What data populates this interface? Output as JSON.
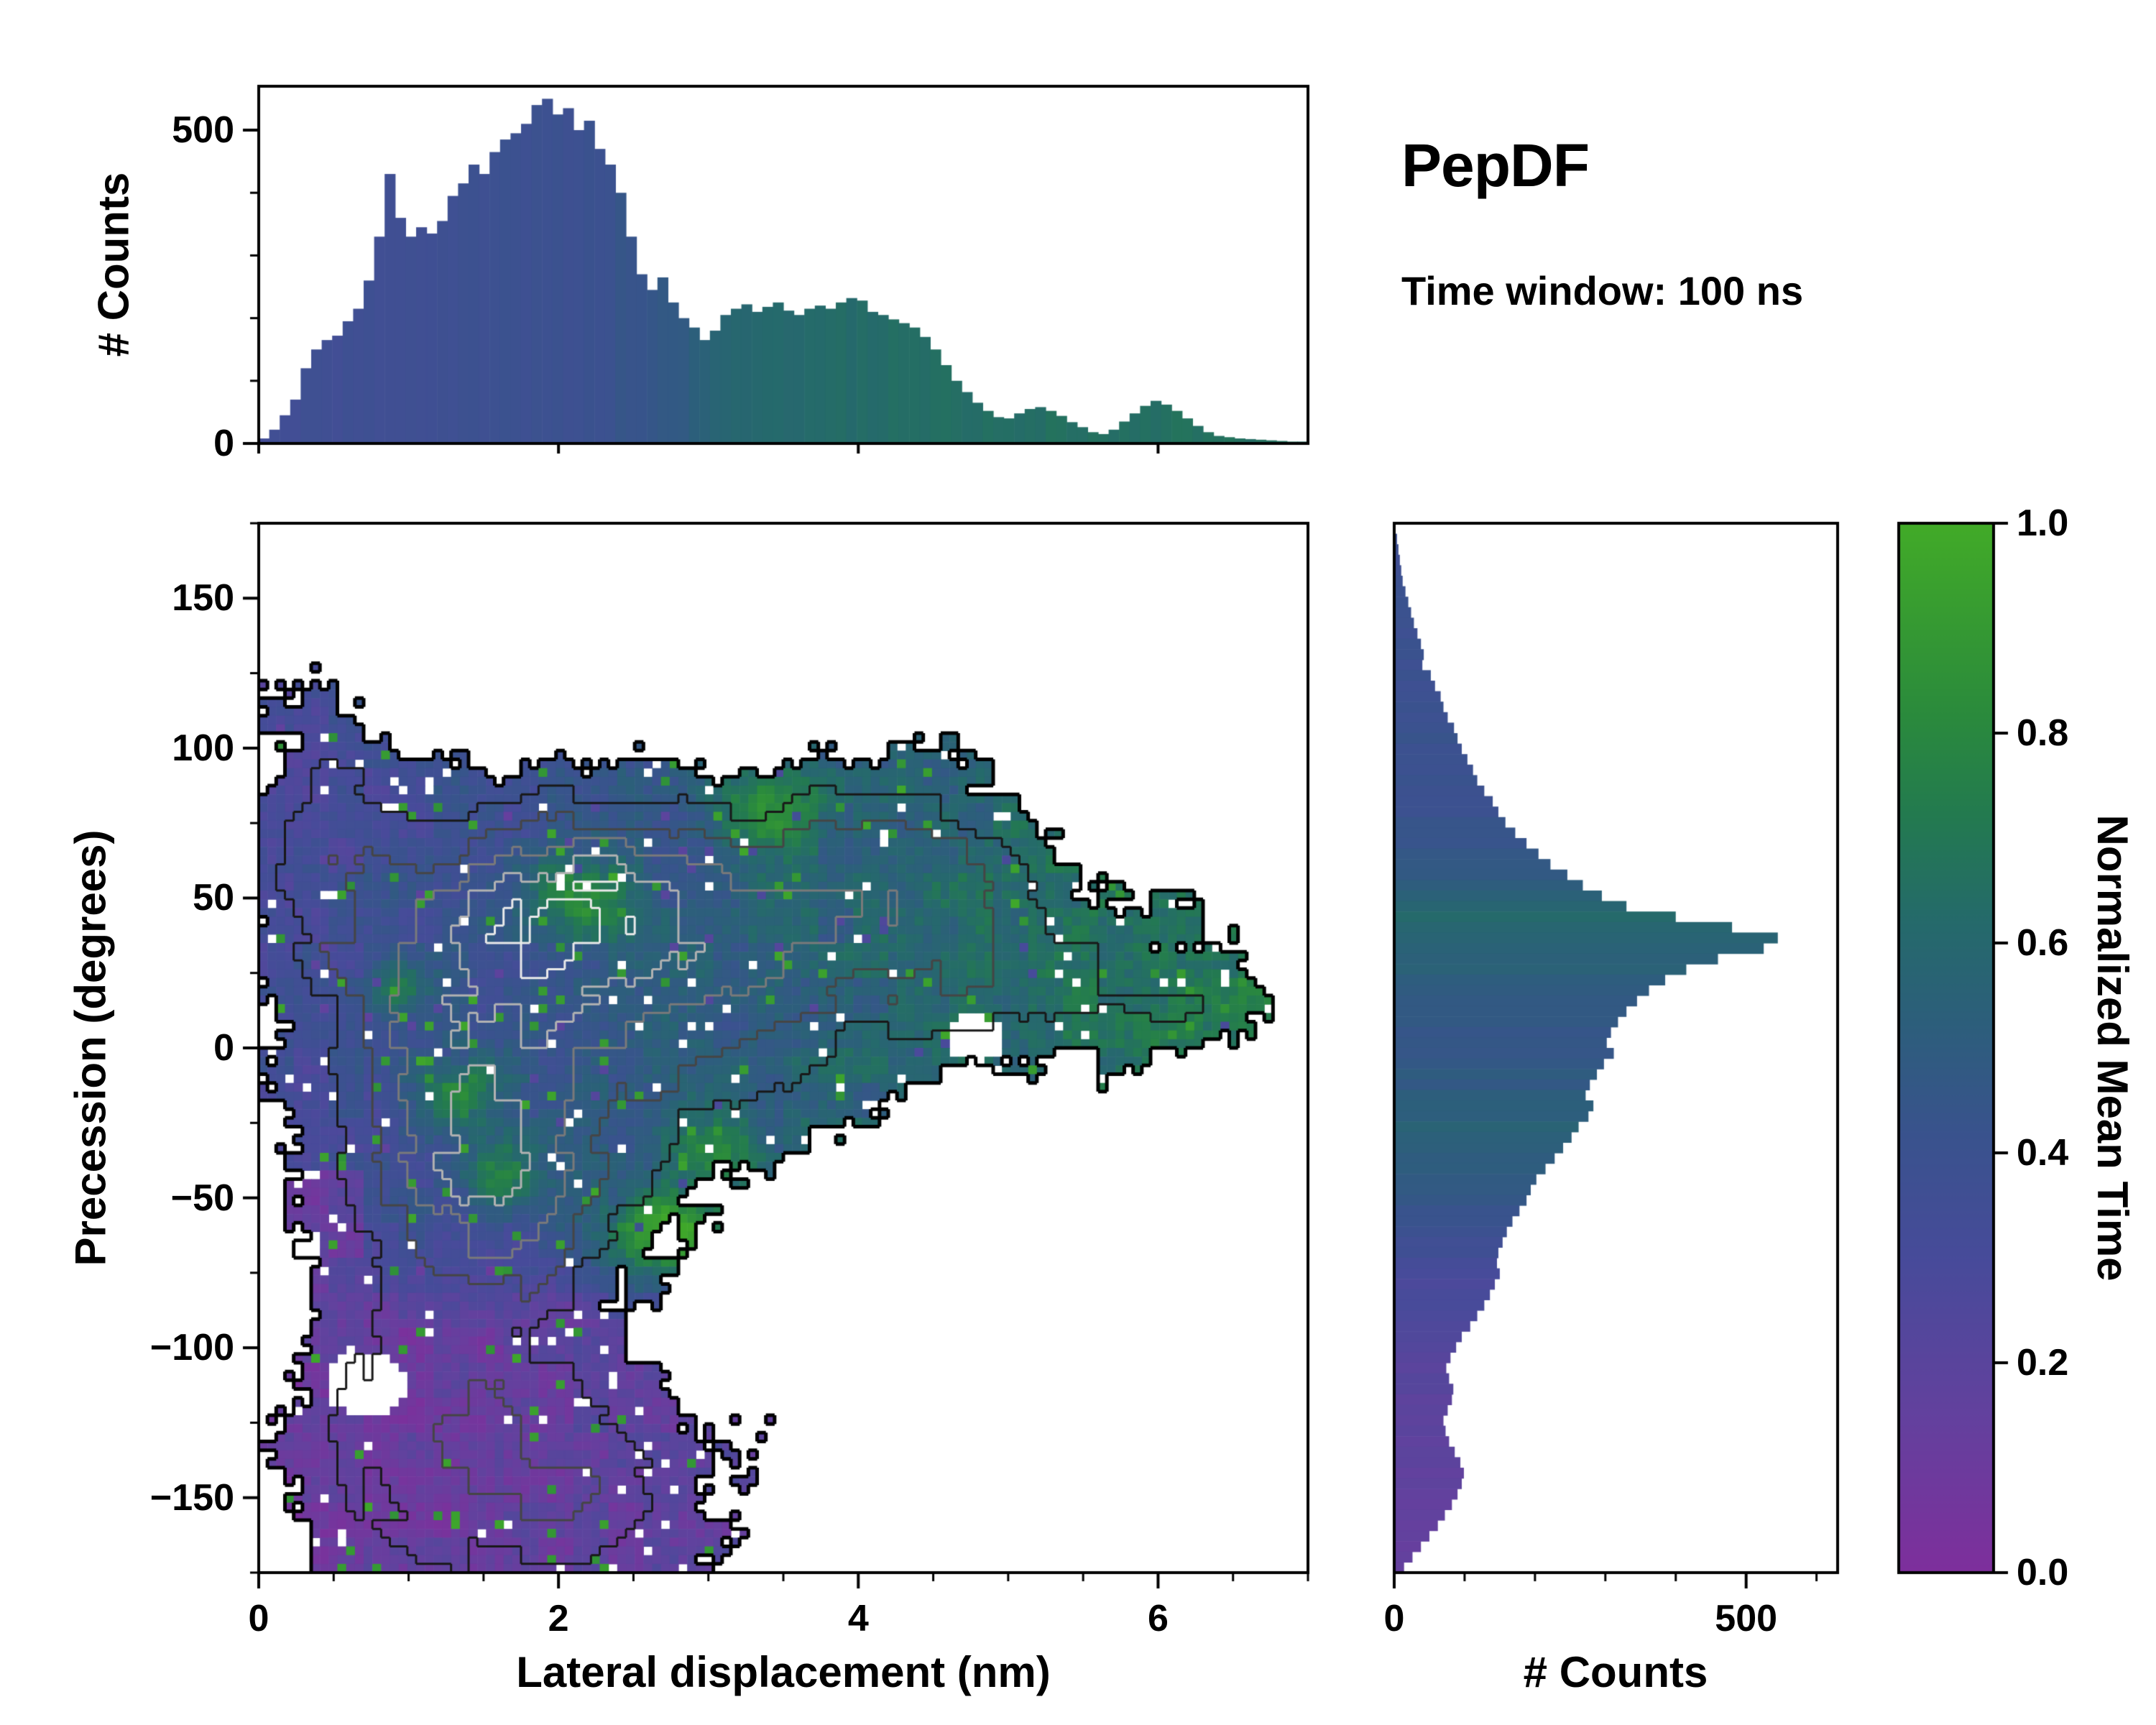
{
  "title": {
    "main": "PepDF",
    "subtitle": "Time window: 100 ns"
  },
  "colors": {
    "background": "#ffffff",
    "axis": "#000000",
    "colormap": [
      [
        0.0,
        "#7e2f9c"
      ],
      [
        0.15,
        "#63419e"
      ],
      [
        0.3,
        "#474b9a"
      ],
      [
        0.42,
        "#39538d"
      ],
      [
        0.52,
        "#2d5e7c"
      ],
      [
        0.62,
        "#256a6b"
      ],
      [
        0.72,
        "#237a50"
      ],
      [
        0.82,
        "#2b8b3c"
      ],
      [
        1.0,
        "#42ab28"
      ]
    ]
  },
  "chart_data": [
    {
      "type": "bar",
      "name": "top-marginal-histogram",
      "xlabel": "Lateral displacement (nm)",
      "ylabel": "# Counts",
      "x_range": [
        0,
        7
      ],
      "y_max": 570,
      "y_ticks": [
        0,
        500
      ],
      "y_minor_step": 100,
      "values": [
        8,
        22,
        45,
        70,
        120,
        150,
        165,
        172,
        195,
        215,
        260,
        330,
        430,
        360,
        330,
        345,
        335,
        355,
        395,
        415,
        445,
        430,
        465,
        485,
        495,
        510,
        540,
        550,
        525,
        535,
        500,
        515,
        470,
        445,
        400,
        330,
        270,
        245,
        265,
        225,
        200,
        185,
        165,
        180,
        205,
        215,
        222,
        210,
        218,
        225,
        212,
        205,
        215,
        220,
        215,
        225,
        232,
        228,
        210,
        205,
        198,
        192,
        185,
        170,
        150,
        125,
        100,
        82,
        65,
        52,
        42,
        40,
        48,
        55,
        58,
        52,
        44,
        34,
        26,
        18,
        15,
        22,
        35,
        48,
        60,
        68,
        62,
        52,
        40,
        28,
        18,
        12,
        10,
        8,
        7,
        6,
        5,
        4,
        3,
        3
      ],
      "color_profile": [
        [
          0,
          0.34
        ],
        [
          1.0,
          0.37
        ],
        [
          2.2,
          0.4
        ],
        [
          2.8,
          0.48
        ],
        [
          3.2,
          0.6
        ],
        [
          4.0,
          0.63
        ],
        [
          5.0,
          0.65
        ],
        [
          7,
          0.66
        ]
      ]
    },
    {
      "type": "heatmap",
      "name": "precession-vs-displacement-2d-histogram",
      "xlabel": "Lateral displacement (nm)",
      "ylabel": "Precession (degrees)",
      "x_range": [
        0,
        7
      ],
      "y_range": [
        -175,
        175
      ],
      "x_ticks": [
        0,
        2,
        4,
        6
      ],
      "x_minor_step": 0.5,
      "y_ticks": [
        -150,
        -100,
        -50,
        0,
        50,
        100,
        150
      ],
      "y_minor_step": 25,
      "color_label": "Normalized Mean Time",
      "color_range": [
        0,
        1
      ],
      "grid": [
        120,
        120
      ],
      "mask_threshold": 0.22,
      "density_blobs": [
        [
          1.35,
          25,
          1.0,
          45,
          1.05
        ],
        [
          2.2,
          50,
          0.9,
          33,
          1.0
        ],
        [
          3.6,
          45,
          1.3,
          38,
          0.8
        ],
        [
          5.0,
          28,
          1.0,
          30,
          0.55
        ],
        [
          6.2,
          15,
          0.65,
          18,
          0.42
        ],
        [
          1.45,
          -25,
          0.85,
          32,
          1.0
        ],
        [
          1.6,
          -60,
          0.9,
          28,
          0.75
        ],
        [
          1.2,
          -125,
          0.95,
          52,
          0.75
        ],
        [
          2.2,
          -150,
          0.9,
          34,
          0.55
        ],
        [
          0.45,
          70,
          0.55,
          40,
          0.55
        ],
        [
          2.9,
          0,
          1.0,
          40,
          0.6
        ],
        [
          4.3,
          70,
          0.8,
          24,
          0.45
        ]
      ],
      "value_base": {
        "intercept": 0.32,
        "slope": 0.06,
        "upper_y": 60,
        "upper_drop": 0.03,
        "deep_value": 0.1,
        "deep_slope": 0.025,
        "deep_y": -95,
        "blend_y": -55
      },
      "value_hotspots": [
        [
          1.35,
          -15,
          0.3,
          12,
          0.4
        ],
        [
          1.6,
          -42,
          0.25,
          10,
          0.38
        ],
        [
          2.15,
          50,
          0.35,
          14,
          0.4
        ],
        [
          3.4,
          78,
          0.35,
          14,
          0.35
        ],
        [
          0.95,
          20,
          0.2,
          9,
          0.3
        ],
        [
          2.7,
          -60,
          0.3,
          12,
          0.42
        ],
        [
          2.8,
          -70,
          0.5,
          18,
          0.25
        ],
        [
          3.0,
          -35,
          0.3,
          12,
          0.3
        ]
      ],
      "holes": [
        [
          0.72,
          -112,
          0.28,
          11
        ],
        [
          0.25,
          -68,
          0.18,
          8
        ],
        [
          4.78,
          3,
          0.2,
          8
        ]
      ],
      "contour_colors": [
        "#000000",
        "#181818",
        "#454545",
        "#7a7a7a",
        "#b2b2b2",
        "#eaeaea"
      ]
    },
    {
      "type": "bar",
      "name": "right-marginal-histogram",
      "orientation": "horizontal",
      "xlabel": "# Counts",
      "x_max": 630,
      "x_ticks": [
        0,
        500
      ],
      "x_minor_step": 100,
      "y_range": [
        -175,
        175
      ],
      "y_order": "descending",
      "values": [
        2,
        4,
        6,
        8,
        10,
        12,
        16,
        20,
        24,
        28,
        33,
        38,
        42,
        40,
        52,
        58,
        66,
        70,
        76,
        85,
        90,
        96,
        104,
        112,
        118,
        128,
        140,
        148,
        158,
        172,
        188,
        205,
        222,
        246,
        268,
        295,
        330,
        400,
        480,
        545,
        525,
        460,
        415,
        385,
        362,
        345,
        330,
        318,
        308,
        302,
        312,
        298,
        288,
        278,
        272,
        283,
        276,
        262,
        252,
        240,
        228,
        215,
        202,
        194,
        188,
        178,
        168,
        160,
        154,
        148,
        146,
        150,
        143,
        136,
        128,
        118,
        108,
        96,
        88,
        80,
        74,
        78,
        84,
        82,
        76,
        70,
        73,
        78,
        86,
        94,
        99,
        96,
        90,
        82,
        72,
        62,
        50,
        38,
        26,
        14
      ],
      "color_profile": [
        [
          -175,
          0.12
        ],
        [
          -140,
          0.16
        ],
        [
          -100,
          0.22
        ],
        [
          -70,
          0.33
        ],
        [
          -45,
          0.5
        ],
        [
          -25,
          0.55
        ],
        [
          -5,
          0.46
        ],
        [
          10,
          0.47
        ],
        [
          30,
          0.55
        ],
        [
          42,
          0.62
        ],
        [
          55,
          0.5
        ],
        [
          70,
          0.42
        ],
        [
          175,
          0.38
        ]
      ]
    },
    {
      "type": "colorbar",
      "name": "normalized-mean-time-colorbar",
      "label": "Normalized Mean Time",
      "range": [
        0,
        1
      ],
      "ticks": [
        0.0,
        0.2,
        0.4,
        0.6,
        0.8,
        1.0
      ]
    }
  ]
}
